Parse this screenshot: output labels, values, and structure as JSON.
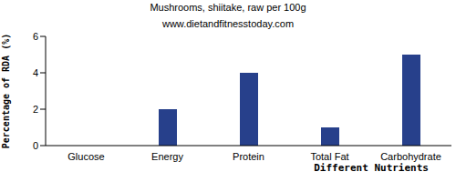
{
  "chart_data": {
    "type": "bar",
    "title": "Mushrooms, shiitake, raw per 100g",
    "subtitle": "www.dietandfitnesstoday.com",
    "x_label": "Different Nutrients",
    "y_label": "Percentage of RDA (%)",
    "categories": [
      "Glucose",
      "Energy",
      "Protein",
      "Total Fat",
      "Carbohydrate"
    ],
    "values": [
      0,
      2,
      4,
      1,
      5
    ],
    "color": "#27408b",
    "ylim": [
      0,
      6
    ],
    "yticks": [
      0,
      2,
      4,
      6
    ],
    "grid": false
  }
}
